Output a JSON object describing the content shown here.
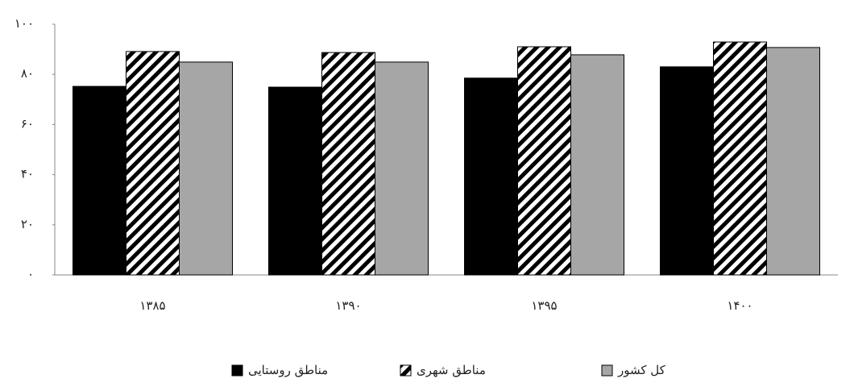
{
  "chart_data": {
    "type": "bar",
    "categories": [
      "۱۳۸۵",
      "۱۳۹۰",
      "۱۳۹۵",
      "۱۴۰۰"
    ],
    "series": [
      {
        "name": "مناطق روستایی",
        "color": "#000000",
        "values": [
          75.2,
          74.9,
          78.5,
          83.0
        ]
      },
      {
        "name": "مناطق شهری",
        "color": "#000000",
        "pattern": "diagonal-hatch",
        "values": [
          89.1,
          88.7,
          91.0,
          92.9
        ]
      },
      {
        "name": "کل کشور",
        "color": "#a6a6a6",
        "values": [
          84.9,
          84.9,
          87.8,
          90.7
        ]
      }
    ],
    "ylim": [
      0,
      100
    ],
    "yticks": [
      {
        "value": 0,
        "label": "۰"
      },
      {
        "value": 20,
        "label": "۲۰"
      },
      {
        "value": 40,
        "label": "۴۰"
      },
      {
        "value": 60,
        "label": "۶۰"
      },
      {
        "value": 80,
        "label": "۸۰"
      },
      {
        "value": 100,
        "label": "۱۰۰"
      }
    ],
    "grid": false,
    "legend": "bottom"
  }
}
